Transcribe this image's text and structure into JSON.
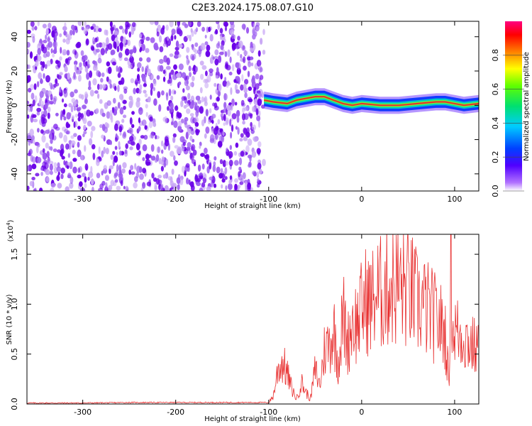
{
  "title": "C2E3.2024.175.08.07.G10",
  "chart_data": [
    {
      "type": "heatmap",
      "title": "C2E3.2024.175.08.07.G10",
      "xlabel": "Height of straight line (km)",
      "ylabel": "Frequency (Hz)",
      "xlim": [
        -360,
        126
      ],
      "ylim": [
        -50,
        49
      ],
      "xticks": [
        -300,
        -200,
        -100,
        0,
        100
      ],
      "yticks": [
        40,
        20,
        0,
        -20,
        -40
      ],
      "noise_region_x": [
        -360,
        -105
      ],
      "signal_track": {
        "x": [
          -105,
          -95,
          -80,
          -70,
          -60,
          -50,
          -40,
          -30,
          -20,
          -10,
          0,
          20,
          40,
          60,
          80,
          90,
          100,
          110,
          126
        ],
        "freq_hz": [
          3,
          2,
          1,
          3,
          4,
          5,
          5,
          3,
          1,
          0,
          1,
          0,
          0,
          1,
          2,
          2,
          1,
          0,
          1
        ]
      },
      "colorbar": {
        "label": "Normalized spectral amplitude",
        "range": [
          0.0,
          1.0
        ],
        "ticks": [
          "0.0",
          "0.2",
          "0.4",
          "0.6",
          "0.8"
        ]
      },
      "colors": {
        "noise_dark": "#6a00e8",
        "noise_light": "#c9a8f5",
        "track_core": "#e83030",
        "track_mid": "#00d0c0",
        "track_edge": "#0030ff"
      }
    },
    {
      "type": "line",
      "xlabel": "Height of straight line (km)",
      "ylabel": "SNR (10 * v/v)",
      "y_exponent_label": "(x10",
      "y_exponent": "4",
      "xlim": [
        -360,
        126
      ],
      "ylim": [
        0,
        1.7
      ],
      "xticks": [
        -300,
        -200,
        -100,
        0,
        100
      ],
      "yticks": [
        "0.0",
        "0.5",
        "1.0",
        "1.5"
      ],
      "series": [
        {
          "color": "#e83030",
          "x": [
            -360,
            -300,
            -250,
            -200,
            -150,
            -100,
            -95,
            -90,
            -85,
            -80,
            -75,
            -70,
            -65,
            -60,
            -55,
            -50,
            -45,
            -40,
            -35,
            -30,
            -25,
            -20,
            -15,
            -10,
            -5,
            0,
            5,
            10,
            15,
            20,
            25,
            30,
            35,
            40,
            45,
            50,
            55,
            60,
            65,
            70,
            75,
            80,
            85,
            90,
            94,
            96,
            98,
            100,
            105,
            110,
            115,
            120,
            126
          ],
          "values": [
            0.01,
            0.01,
            0.015,
            0.015,
            0.015,
            0.015,
            0.08,
            0.35,
            0.42,
            0.3,
            0.15,
            0.05,
            0.22,
            0.12,
            0.05,
            0.35,
            0.18,
            0.55,
            0.6,
            0.75,
            0.4,
            0.9,
            0.6,
            0.85,
            0.8,
            0.95,
            1.05,
            1.0,
            1.1,
            1.1,
            1.15,
            1.2,
            1.18,
            1.2,
            1.15,
            1.15,
            1.1,
            1.0,
            1.0,
            0.95,
            0.9,
            0.85,
            0.8,
            0.7,
            0.2,
            1.6,
            0.7,
            0.75,
            0.7,
            0.68,
            0.62,
            0.58,
            0.52
          ]
        }
      ]
    }
  ]
}
